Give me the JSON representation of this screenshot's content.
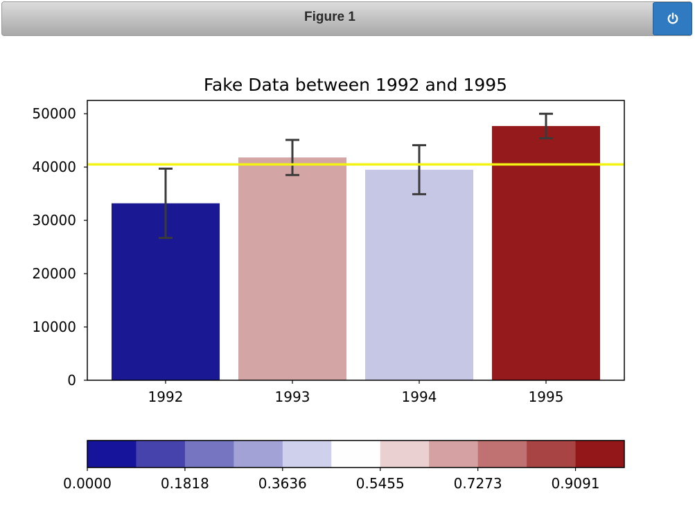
{
  "window": {
    "title": "Figure 1",
    "power_icon": "power-icon",
    "accent_color": "#2f7ac0"
  },
  "chart_data": {
    "type": "bar",
    "title": "Fake Data between 1992 and 1995",
    "xlabel": "",
    "ylabel": "",
    "categories": [
      "1992",
      "1993",
      "1994",
      "1995"
    ],
    "values": [
      33200,
      41800,
      39500,
      47700
    ],
    "errors": [
      6500,
      3300,
      4600,
      2300
    ],
    "bar_colors": [
      "#1a1993",
      "#d4a5a5",
      "#c6c6e5",
      "#951a1b"
    ],
    "ylim": [
      0,
      52500
    ],
    "yticks": [
      "0",
      "10000",
      "20000",
      "30000",
      "40000",
      "50000"
    ],
    "ytick_values": [
      0,
      10000,
      20000,
      30000,
      40000,
      50000
    ],
    "reference_line": {
      "value": 40500,
      "color": "#f2f213"
    },
    "grid": false,
    "colorbar": {
      "orientation": "horizontal",
      "colors": [
        "#16149a",
        "#4643ac",
        "#7575c1",
        "#a3a2d6",
        "#cfd0eb",
        "#fefefe",
        "#ebd0d1",
        "#d5a1a2",
        "#c07272",
        "#a94445",
        "#931719"
      ],
      "tick_labels": [
        "0.0000",
        "0.1818",
        "0.3636",
        "0.5455",
        "0.7273",
        "0.9091"
      ],
      "tick_values": [
        0.0,
        0.1818,
        0.3636,
        0.5455,
        0.7273,
        0.9091
      ],
      "range": [
        0,
        1
      ]
    }
  }
}
